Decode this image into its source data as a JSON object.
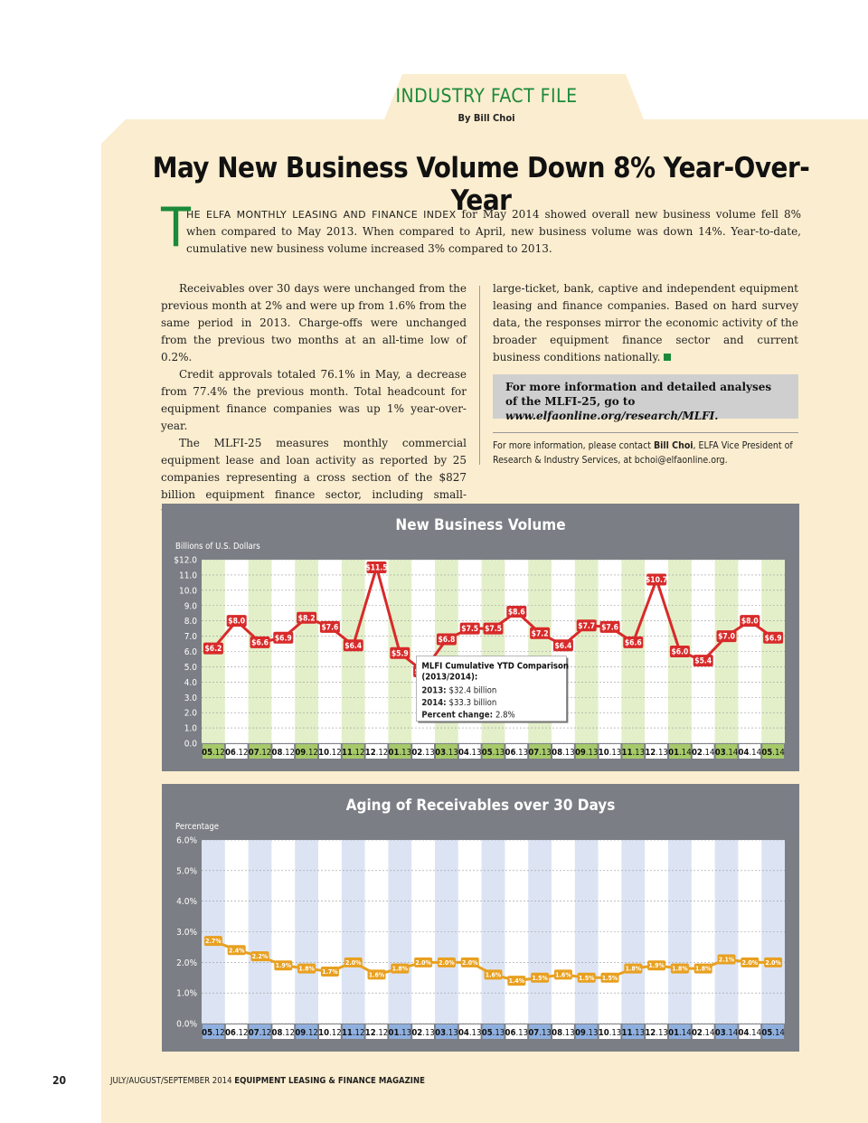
{
  "section_title": "INDUSTRY FACT FILE",
  "byline": "By Bill Choi",
  "headline": "May New Business Volume Down 8% Year-Over-Year",
  "lead": {
    "dropcap": "T",
    "smallcaps": "HE ELFA MONTHLY LEASING AND FINANCE INDEX",
    "text": " for May 2014 showed overall new business volume fell 8% when compared to May 2013. When compared to April, new business volume was down 14%. Year-to-date, cumulative new business volume increased 3% compared to 2013."
  },
  "column1": [
    "Receivables over 30 days were unchanged from the previous month at 2% and were up from 1.6% from the same period in 2013. Charge-offs were unchanged from the previous two months at an all-time low of  0.2%.",
    "Credit approvals totaled 76.1% in May, a decrease from 77.4% the previous month. Total headcount for equipment finance companies was up 1% year-over-year.",
    "The MLFI-25 measures monthly commercial equipment lease and loan activity as reported by 25 companies representing a cross section of the $827 billion equipment finance sector, including small-ticket, middle-market,"
  ],
  "column2": "large-ticket, bank, captive and independent equipment leasing and finance companies. Based on hard survey data, the responses mirror the economic activity of the broader equipment finance sector and current business conditions nationally.",
  "infobox": {
    "text": "For more information and detailed analyses of the MLFI-25, go to ",
    "url": "www.elfaonline.org/research/MLFI."
  },
  "contact": {
    "prefix": "For more information, please contact ",
    "name": "Bill Choi",
    "suffix": ", ELFA Vice President of Research & Industry Services, at bchoi@elfaonline.org."
  },
  "footer": {
    "page_number": "20",
    "issue": "JULY/AUGUST/SEPTEMBER 2014 ",
    "magazine": "EQUIPMENT LEASING & FINANCE MAGAZINE"
  },
  "colors": {
    "accent_green": "#1b8a3a",
    "panel": "#7b7e84",
    "volume_line": "#d82a2a",
    "aging_line": "#e8a020"
  },
  "chart_data": [
    {
      "type": "line",
      "title": "New Business Volume",
      "ylabel": "Billions of U.S. Dollars",
      "ylim": [
        0,
        12
      ],
      "yticks": [
        "$12.0",
        "11.0",
        "10.0",
        "9.0",
        "8.0",
        "7.0",
        "6.0",
        "5.0",
        "4.0",
        "3.0",
        "2.0",
        "1.0",
        "0.0"
      ],
      "grid": true,
      "x": [
        "05.12",
        "06.12",
        "07.12",
        "08.12",
        "09.12",
        "10.12",
        "11.12",
        "12.12",
        "01.13",
        "02.13",
        "03.13",
        "04.13",
        "05.13",
        "06.13",
        "07.13",
        "08.13",
        "09.13",
        "10.13",
        "11.13",
        "12.13",
        "01.14",
        "02.14",
        "03.14",
        "04.14",
        "05.14"
      ],
      "values": [
        6.2,
        8.0,
        6.6,
        6.9,
        8.2,
        7.6,
        6.4,
        11.5,
        5.9,
        4.7,
        6.8,
        7.5,
        7.5,
        8.6,
        7.2,
        6.4,
        7.7,
        7.6,
        6.6,
        10.7,
        6.0,
        5.4,
        7.0,
        8.0,
        6.9
      ],
      "data_labels": [
        "$6.2",
        "$8.0",
        "$6.6",
        "$6.9",
        "$8.2",
        "$7.6",
        "$6.4",
        "$11.5",
        "$5.9",
        "$4.7",
        "$6.8",
        "$7.5",
        "$7.5",
        "$8.6",
        "$7.2",
        "$6.4",
        "$7.7",
        "$7.6",
        "$6.6",
        "$10.7",
        "$6.0",
        "$5.4",
        "$7.0",
        "$8.0",
        "$6.9"
      ],
      "annotation": {
        "title": "MLFI Cumulative YTD Comparison (2013/2014):",
        "rows": [
          {
            "label": "2013:",
            "value": "$32.4 billion"
          },
          {
            "label": "2014:",
            "value": "$33.3 billion"
          },
          {
            "label": "Percent change:",
            "value": "2.8%"
          }
        ]
      }
    },
    {
      "type": "line",
      "title": "Aging of Receivables over 30 Days",
      "ylabel": "Percentage",
      "ylim": [
        0,
        6
      ],
      "yticks": [
        "6.0%",
        "5.0%",
        "4.0%",
        "3.0%",
        "2.0%",
        "1.0%",
        "0.0%"
      ],
      "grid": true,
      "x": [
        "05.12",
        "06.12",
        "07.12",
        "08.12",
        "09.12",
        "10.12",
        "11.12",
        "12.12",
        "01.13",
        "02.13",
        "03.13",
        "04.13",
        "05.13",
        "06.13",
        "07.13",
        "08.13",
        "09.13",
        "10.13",
        "11.13",
        "12.13",
        "01.14",
        "02.14",
        "03.14",
        "04.14",
        "05.14"
      ],
      "values": [
        2.7,
        2.4,
        2.2,
        1.9,
        1.8,
        1.7,
        2.0,
        1.6,
        1.8,
        2.0,
        2.0,
        2.0,
        1.6,
        1.4,
        1.5,
        1.6,
        1.5,
        1.5,
        1.8,
        1.9,
        1.8,
        1.8,
        2.1,
        2.0,
        2.0
      ],
      "data_labels": [
        "2.7%",
        "2.4%",
        "2.2%",
        "1.9%",
        "1.8%",
        "1.7%",
        "2.0%",
        "1.6%",
        "1.8%",
        "2.0%",
        "2.0%",
        "2.0%",
        "1.6%",
        "1.4%",
        "1.5%",
        "1.6%",
        "1.5%",
        "1.5%",
        "1.8%",
        "1.9%",
        "1.8%",
        "1.8%",
        "2.1%",
        "2.0%",
        "2.0%"
      ]
    }
  ]
}
